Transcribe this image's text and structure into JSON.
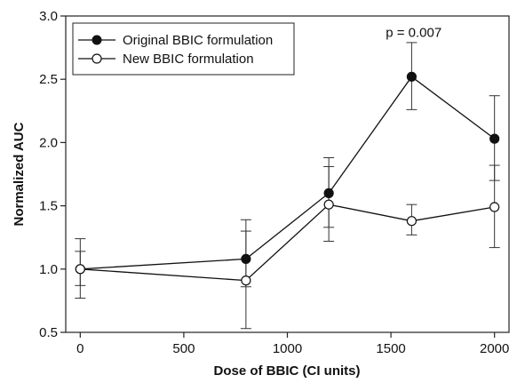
{
  "chart_data": {
    "type": "line",
    "title": "",
    "xlabel": "Dose of BBIC (CI units)",
    "ylabel": "Normalized AUC",
    "xlim": [
      -70,
      2070
    ],
    "ylim": [
      0.5,
      3.0
    ],
    "xticks": [
      0,
      500,
      1000,
      1500,
      2000
    ],
    "yticks": [
      0.5,
      1.0,
      1.5,
      2.0,
      2.5,
      3.0
    ],
    "x_tick_labels": [
      "0",
      "500",
      "1000",
      "1500",
      "2000"
    ],
    "y_tick_labels": [
      "0.5",
      "1.0",
      "1.5",
      "2.0",
      "2.5",
      "3.0"
    ],
    "grid": false,
    "legend_position": "top-left",
    "annotation": {
      "text": "p = 0.007",
      "x": 1610,
      "y": 2.87
    },
    "series": [
      {
        "name": "Original BBIC formulation",
        "marker": "filled-circle",
        "color": "#111111",
        "x": [
          0,
          800,
          1200,
          1600,
          2000
        ],
        "y": [
          1.0,
          1.08,
          1.6,
          2.52,
          2.03
        ],
        "err_low": [
          0.77,
          0.86,
          1.33,
          2.26,
          1.7
        ],
        "err_high": [
          1.14,
          1.3,
          1.88,
          2.79,
          2.37
        ]
      },
      {
        "name": "New BBIC formulation",
        "marker": "open-circle",
        "color": "#111111",
        "x": [
          0,
          800,
          1200,
          1600,
          2000
        ],
        "y": [
          1.0,
          0.91,
          1.51,
          1.38,
          1.49
        ],
        "err_low": [
          0.87,
          0.53,
          1.22,
          1.27,
          1.17
        ],
        "err_high": [
          1.24,
          1.39,
          1.81,
          1.51,
          1.82
        ]
      }
    ]
  }
}
